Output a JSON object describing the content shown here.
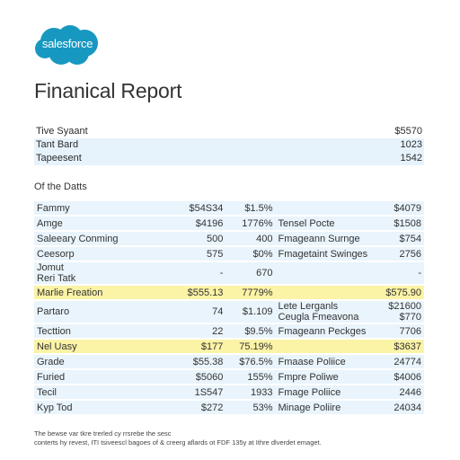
{
  "brand": {
    "logo_text": "salesforce",
    "color": "#1798c1"
  },
  "page": {
    "title": "Finanical Report"
  },
  "summary": {
    "rows": [
      {
        "label": "Tive Syaant",
        "value": "$5570"
      },
      {
        "label": "Tant Bard",
        "value": "1023"
      },
      {
        "label": "Tapeesent",
        "value": "1542"
      }
    ]
  },
  "details_label": "Of the Datts",
  "details": {
    "rows": [
      {
        "name": "Fammy",
        "amount": "$54S34",
        "pct": "$1.5%",
        "desc": "",
        "total": "$4079"
      },
      {
        "name": "Amge",
        "amount": "$4196",
        "pct": "1776%",
        "desc": "Tensel Pocte",
        "total": "$1508"
      },
      {
        "name": "Saleeary Conming",
        "amount": "500",
        "pct": "400",
        "desc": "Fmageann Surnge",
        "total": "$754"
      },
      {
        "name": "Ceesorp",
        "amount": "575",
        "pct": "$0%",
        "desc": "Fmagetaint Swinges",
        "total": "2756"
      },
      {
        "name": "Jomut",
        "name2": "Reri Tatk",
        "amount": "-",
        "pct": "670",
        "desc": "",
        "total": "-"
      },
      {
        "name": "Marlie Freation",
        "amount": "$555.13",
        "pct": "7779%",
        "desc": "",
        "total": "$575.90"
      },
      {
        "name": "Partaro",
        "amount": "74",
        "pct": "$1.109",
        "desc": "Lete Lerganls",
        "desc2": "Ceugla Fmeavona",
        "total": "$21600",
        "total2": "$770"
      },
      {
        "name": "Tecttion",
        "amount": "22",
        "pct": "$9.5%",
        "desc": "Fmageann Peckges",
        "total": "7706"
      },
      {
        "name": "Nel Uasy",
        "amount": "$177",
        "pct": "75.19%",
        "desc": "",
        "total": "$3637"
      },
      {
        "name": "Grade",
        "amount": "$55.38",
        "pct": "$76.5%",
        "desc": "Fmaase Poliice",
        "total": "24774"
      },
      {
        "name": "Furied",
        "amount": "$5060",
        "pct": "155%",
        "desc": "Fmpre Poliwe",
        "total": "$4006"
      },
      {
        "name": "Tecil",
        "amount": "1S547",
        "pct": "1933",
        "desc": "Fmage Poliice",
        "total": "2446"
      },
      {
        "name": "Kyp Tod",
        "amount": "$272",
        "pct": "53%",
        "desc": "Minage Poliire",
        "total": "24034"
      }
    ]
  },
  "footer": {
    "line1": "The bewse var tkre trerled cy rrsrebe the sesc",
    "line2": "conterts hy revest, ITI tsiveescl bagoes of & creerg aflards ot FDF 135y at Ithre dlverdet emaget."
  }
}
